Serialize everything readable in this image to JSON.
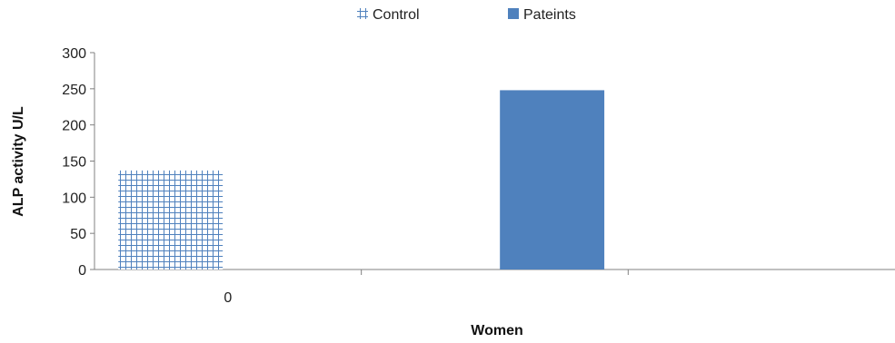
{
  "chart_data": {
    "type": "bar",
    "title": "",
    "xlabel": "Women",
    "ylabel": "ALP activity U/L",
    "categories": [
      "0",
      "",
      ""
    ],
    "series": [
      {
        "name": "Control",
        "values": [
          137,
          null,
          null
        ],
        "color": "#4F81BD",
        "pattern": "grid"
      },
      {
        "name": "Pateints",
        "values": [
          null,
          248,
          null
        ],
        "color": "#4F81BD",
        "pattern": "solid"
      }
    ],
    "ylim": [
      0,
      300
    ],
    "yticks": [
      0,
      50,
      100,
      150,
      200,
      250,
      300
    ],
    "grid": false,
    "legend": "top-center"
  }
}
